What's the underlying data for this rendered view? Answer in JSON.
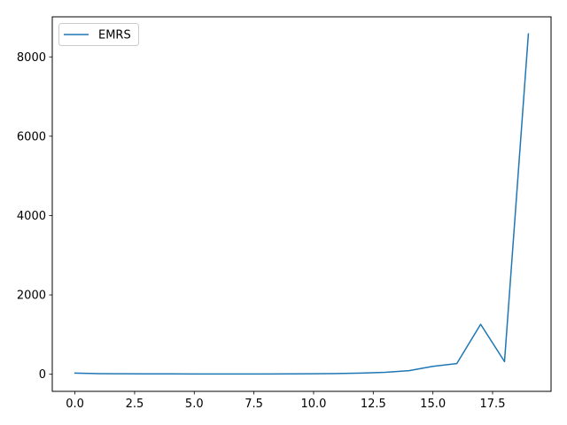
{
  "chart_data": {
    "type": "line",
    "title": "",
    "xlabel": "",
    "ylabel": "",
    "xlim": [
      -0.95,
      19.95
    ],
    "ylim": [
      -431,
      9010
    ],
    "xticks": [
      0.0,
      2.5,
      5.0,
      7.5,
      10.0,
      12.5,
      15.0,
      17.5
    ],
    "xtick_labels": [
      "0.0",
      "2.5",
      "5.0",
      "7.5",
      "10.0",
      "12.5",
      "15.0",
      "17.5"
    ],
    "yticks": [
      0,
      2000,
      4000,
      6000,
      8000
    ],
    "ytick_labels": [
      "0",
      "2000",
      "4000",
      "6000",
      "8000"
    ],
    "grid": false,
    "legend": {
      "placement": "upper-left",
      "entries": [
        "EMRS"
      ]
    },
    "series": [
      {
        "name": "EMRS",
        "color": "#1f77b4",
        "x": [
          0,
          1,
          2,
          3,
          4,
          5,
          6,
          7,
          8,
          9,
          10,
          11,
          12,
          13,
          14,
          15,
          16,
          17,
          18,
          19
        ],
        "y": [
          30,
          15,
          12,
          10,
          10,
          8,
          8,
          8,
          8,
          10,
          12,
          18,
          30,
          50,
          90,
          200,
          270,
          1260,
          320,
          8580
        ]
      }
    ]
  }
}
